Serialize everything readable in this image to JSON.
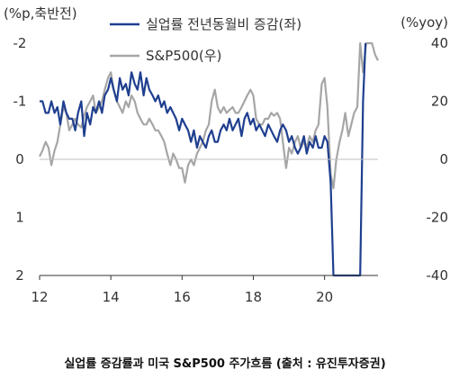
{
  "caption": "실업률 증감률과 미국 S&P500 주가흐름 (출처 : 유진투자증권)",
  "chart_data": {
    "type": "line",
    "left_axis": {
      "title": "(%p,축반전)",
      "range": [
        -2,
        2
      ],
      "inverted": true,
      "ticks": [
        -2,
        -1,
        0,
        1,
        2
      ],
      "tick_labels": [
        "-2",
        "-1",
        "0",
        "1",
        "2"
      ]
    },
    "right_axis": {
      "title": "(%yoy)",
      "range": [
        -40,
        40
      ],
      "ticks": [
        40,
        20,
        0,
        -20,
        -40
      ],
      "tick_labels": [
        "40",
        "20",
        "0",
        "-20",
        "-40"
      ]
    },
    "x_axis": {
      "range": [
        2012,
        2021.5
      ],
      "ticks": [
        2012,
        2014,
        2016,
        2018,
        2020
      ],
      "tick_labels": [
        "12",
        "14",
        "16",
        "18",
        "20"
      ]
    },
    "grid": false,
    "legend_position": "top",
    "series": [
      {
        "name": "실업률 전년동월비 증감(좌)",
        "axis": "left",
        "color": "#1f3f8f",
        "points": [
          [
            2012.0,
            -1.0
          ],
          [
            2012.08,
            -1.0
          ],
          [
            2012.17,
            -0.8
          ],
          [
            2012.25,
            -0.8
          ],
          [
            2012.33,
            -1.0
          ],
          [
            2012.42,
            -0.8
          ],
          [
            2012.5,
            -0.9
          ],
          [
            2012.58,
            -0.6
          ],
          [
            2012.67,
            -1.0
          ],
          [
            2012.75,
            -0.8
          ],
          [
            2012.83,
            -0.7
          ],
          [
            2012.92,
            -0.7
          ],
          [
            2013.0,
            -0.5
          ],
          [
            2013.08,
            -0.8
          ],
          [
            2013.17,
            -1.0
          ],
          [
            2013.25,
            -0.4
          ],
          [
            2013.33,
            -0.8
          ],
          [
            2013.42,
            -0.6
          ],
          [
            2013.5,
            -0.9
          ],
          [
            2013.58,
            -0.8
          ],
          [
            2013.67,
            -1.0
          ],
          [
            2013.75,
            -0.8
          ],
          [
            2013.83,
            -1.1
          ],
          [
            2013.92,
            -1.2
          ],
          [
            2014.0,
            -1.4
          ],
          [
            2014.08,
            -1.2
          ],
          [
            2014.17,
            -1.0
          ],
          [
            2014.25,
            -1.4
          ],
          [
            2014.33,
            -1.2
          ],
          [
            2014.42,
            -1.3
          ],
          [
            2014.5,
            -1.1
          ],
          [
            2014.58,
            -1.5
          ],
          [
            2014.67,
            -1.3
          ],
          [
            2014.75,
            -1.2
          ],
          [
            2014.83,
            -1.5
          ],
          [
            2014.92,
            -1.1
          ],
          [
            2015.0,
            -1.4
          ],
          [
            2015.08,
            -1.2
          ],
          [
            2015.17,
            -1.1
          ],
          [
            2015.25,
            -1.0
          ],
          [
            2015.33,
            -1.1
          ],
          [
            2015.42,
            -0.9
          ],
          [
            2015.5,
            -1.0
          ],
          [
            2015.58,
            -0.8
          ],
          [
            2015.67,
            -0.9
          ],
          [
            2015.75,
            -0.8
          ],
          [
            2015.83,
            -0.7
          ],
          [
            2015.92,
            -0.5
          ],
          [
            2016.0,
            -0.7
          ],
          [
            2016.08,
            -0.6
          ],
          [
            2016.17,
            -0.5
          ],
          [
            2016.25,
            -0.3
          ],
          [
            2016.33,
            -0.5
          ],
          [
            2016.42,
            -0.2
          ],
          [
            2016.5,
            -0.4
          ],
          [
            2016.58,
            -0.3
          ],
          [
            2016.67,
            -0.2
          ],
          [
            2016.75,
            -0.4
          ],
          [
            2016.83,
            -0.5
          ],
          [
            2016.92,
            -0.3
          ],
          [
            2017.0,
            -0.3
          ],
          [
            2017.08,
            -0.5
          ],
          [
            2017.17,
            -0.6
          ],
          [
            2017.25,
            -0.5
          ],
          [
            2017.33,
            -0.7
          ],
          [
            2017.42,
            -0.5
          ],
          [
            2017.5,
            -0.6
          ],
          [
            2017.58,
            -0.7
          ],
          [
            2017.67,
            -0.4
          ],
          [
            2017.75,
            -0.7
          ],
          [
            2017.83,
            -0.8
          ],
          [
            2017.92,
            -0.6
          ],
          [
            2018.0,
            -0.7
          ],
          [
            2018.08,
            -0.5
          ],
          [
            2018.17,
            -0.6
          ],
          [
            2018.25,
            -0.5
          ],
          [
            2018.33,
            -0.4
          ],
          [
            2018.42,
            -0.6
          ],
          [
            2018.5,
            -0.5
          ],
          [
            2018.58,
            -0.4
          ],
          [
            2018.67,
            -0.3
          ],
          [
            2018.75,
            -0.5
          ],
          [
            2018.83,
            -0.6
          ],
          [
            2018.92,
            -0.5
          ],
          [
            2019.0,
            -0.3
          ],
          [
            2019.08,
            -0.4
          ],
          [
            2019.17,
            -0.2
          ],
          [
            2019.25,
            -0.1
          ],
          [
            2019.33,
            -0.2
          ],
          [
            2019.42,
            -0.4
          ],
          [
            2019.5,
            -0.1
          ],
          [
            2019.58,
            -0.3
          ],
          [
            2019.67,
            -0.2
          ],
          [
            2019.75,
            -0.4
          ],
          [
            2019.83,
            -0.2
          ],
          [
            2019.92,
            -0.2
          ],
          [
            2020.0,
            -0.4
          ],
          [
            2020.08,
            -0.3
          ],
          [
            2020.17,
            0.4
          ],
          [
            2020.25,
            2.0
          ],
          [
            2021.0,
            2.0
          ],
          [
            2021.08,
            -1.0
          ],
          [
            2021.15,
            -2.0
          ]
        ]
      },
      {
        "name": "S&P500(우)",
        "axis": "right",
        "color": "#a6a6a6",
        "points": [
          [
            2012.0,
            1
          ],
          [
            2012.08,
            3
          ],
          [
            2012.17,
            6
          ],
          [
            2012.25,
            4
          ],
          [
            2012.33,
            -2
          ],
          [
            2012.42,
            3
          ],
          [
            2012.5,
            6
          ],
          [
            2012.58,
            12
          ],
          [
            2012.67,
            18
          ],
          [
            2012.75,
            16
          ],
          [
            2012.83,
            10
          ],
          [
            2012.92,
            12
          ],
          [
            2013.0,
            14
          ],
          [
            2013.08,
            12
          ],
          [
            2013.17,
            11
          ],
          [
            2013.25,
            15
          ],
          [
            2013.33,
            18
          ],
          [
            2013.42,
            20
          ],
          [
            2013.5,
            22
          ],
          [
            2013.58,
            16
          ],
          [
            2013.67,
            18
          ],
          [
            2013.75,
            20
          ],
          [
            2013.83,
            24
          ],
          [
            2013.92,
            28
          ],
          [
            2014.0,
            30
          ],
          [
            2014.08,
            24
          ],
          [
            2014.17,
            20
          ],
          [
            2014.25,
            18
          ],
          [
            2014.33,
            16
          ],
          [
            2014.42,
            20
          ],
          [
            2014.5,
            18
          ],
          [
            2014.58,
            22
          ],
          [
            2014.67,
            20
          ],
          [
            2014.75,
            16
          ],
          [
            2014.83,
            14
          ],
          [
            2014.92,
            12
          ],
          [
            2015.0,
            12
          ],
          [
            2015.08,
            14
          ],
          [
            2015.17,
            12
          ],
          [
            2015.25,
            10
          ],
          [
            2015.33,
            10
          ],
          [
            2015.42,
            8
          ],
          [
            2015.5,
            6
          ],
          [
            2015.58,
            2
          ],
          [
            2015.67,
            -2
          ],
          [
            2015.75,
            2
          ],
          [
            2015.83,
            0
          ],
          [
            2015.92,
            -3
          ],
          [
            2016.0,
            -3
          ],
          [
            2016.08,
            -8
          ],
          [
            2016.17,
            -2
          ],
          [
            2016.25,
            0
          ],
          [
            2016.33,
            -2
          ],
          [
            2016.42,
            2
          ],
          [
            2016.5,
            4
          ],
          [
            2016.58,
            6
          ],
          [
            2016.67,
            10
          ],
          [
            2016.75,
            12
          ],
          [
            2016.83,
            20
          ],
          [
            2016.92,
            24
          ],
          [
            2017.0,
            18
          ],
          [
            2017.08,
            16
          ],
          [
            2017.17,
            18
          ],
          [
            2017.25,
            16
          ],
          [
            2017.33,
            17
          ],
          [
            2017.42,
            18
          ],
          [
            2017.5,
            16
          ],
          [
            2017.58,
            16
          ],
          [
            2017.67,
            18
          ],
          [
            2017.75,
            20
          ],
          [
            2017.83,
            22
          ],
          [
            2017.92,
            24
          ],
          [
            2018.0,
            22
          ],
          [
            2018.08,
            14
          ],
          [
            2018.17,
            12
          ],
          [
            2018.25,
            12
          ],
          [
            2018.33,
            14
          ],
          [
            2018.42,
            14
          ],
          [
            2018.5,
            16
          ],
          [
            2018.58,
            15
          ],
          [
            2018.67,
            16
          ],
          [
            2018.75,
            14
          ],
          [
            2018.83,
            6
          ],
          [
            2018.92,
            -3
          ],
          [
            2019.0,
            4
          ],
          [
            2019.08,
            2
          ],
          [
            2019.17,
            6
          ],
          [
            2019.25,
            8
          ],
          [
            2019.33,
            4
          ],
          [
            2019.42,
            6
          ],
          [
            2019.5,
            4
          ],
          [
            2019.58,
            8
          ],
          [
            2019.67,
            6
          ],
          [
            2019.75,
            10
          ],
          [
            2019.83,
            12
          ],
          [
            2019.92,
            26
          ],
          [
            2020.0,
            28
          ],
          [
            2020.08,
            18
          ],
          [
            2020.17,
            -5
          ],
          [
            2020.25,
            -10
          ],
          [
            2020.33,
            0
          ],
          [
            2020.42,
            6
          ],
          [
            2020.5,
            10
          ],
          [
            2020.58,
            16
          ],
          [
            2020.67,
            8
          ],
          [
            2020.75,
            12
          ],
          [
            2020.83,
            16
          ],
          [
            2020.92,
            18
          ],
          [
            2021.0,
            40
          ],
          [
            2021.08,
            30
          ],
          [
            2021.17,
            40
          ],
          [
            2021.25,
            40
          ],
          [
            2021.33,
            40
          ],
          [
            2021.42,
            36
          ],
          [
            2021.5,
            34
          ]
        ]
      }
    ]
  }
}
